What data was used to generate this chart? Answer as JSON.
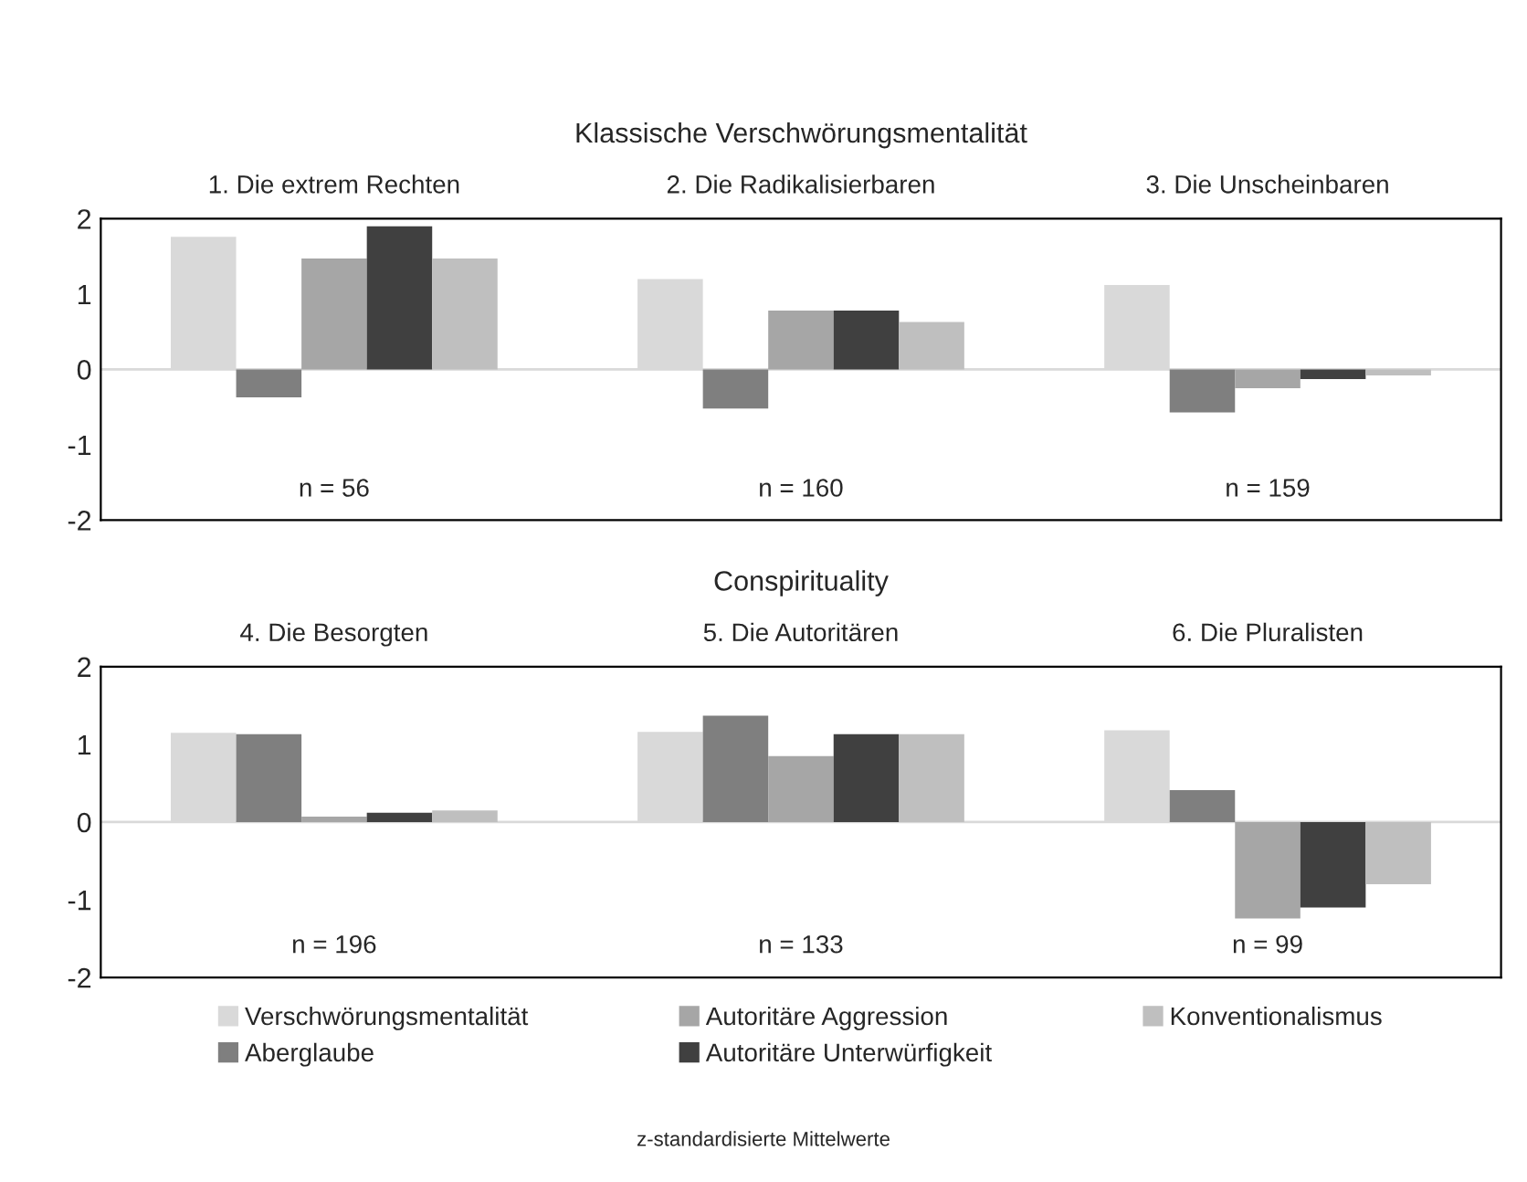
{
  "chart_data": [
    {
      "type": "bar",
      "title": "Klassische Verschwörungsmentalität",
      "categories": [
        "1. Die extrem Rechten",
        "2. Die Radikalisierbaren",
        "3. Die Unscheinbaren"
      ],
      "series": [
        {
          "color": "#d9d9d9",
          "values": [
            1.76,
            1.2,
            1.12
          ]
        },
        {
          "color": "#7f7f7f",
          "values": [
            -0.37,
            -0.52,
            -0.57
          ]
        },
        {
          "color": "#a6a6a6",
          "values": [
            1.47,
            0.78,
            -0.25
          ]
        },
        {
          "color": "#404040",
          "values": [
            1.9,
            0.78,
            -0.13
          ]
        },
        {
          "color": "#bfbfbf",
          "values": [
            1.47,
            0.63,
            -0.08
          ]
        }
      ],
      "ylim": [
        -2,
        2
      ],
      "yticks": [
        2,
        1,
        0,
        -1,
        -2
      ],
      "ref_lines": [
        {
          "axis": "y",
          "value": 0,
          "color": "#d9d9d9"
        }
      ],
      "annotations": [
        "n = 56",
        "n = 160",
        "n = 159"
      ],
      "grid": false
    },
    {
      "type": "bar",
      "title": "Conspirituality",
      "categories": [
        "4. Die Besorgten",
        "5. Die Autoritären",
        "6. Die Pluralisten"
      ],
      "series": [
        {
          "name": "Verschwörungsmentalität",
          "color": "#d9d9d9",
          "values": [
            1.15,
            1.16,
            1.18
          ]
        },
        {
          "name": "Aberglaube",
          "color": "#7f7f7f",
          "values": [
            1.13,
            1.37,
            0.41
          ]
        },
        {
          "name": "Autoritäre Aggression",
          "color": "#a6a6a6",
          "values": [
            0.07,
            0.85,
            -1.24
          ]
        },
        {
          "name": "Autoritäre Unterwürfigkeit",
          "color": "#404040",
          "values": [
            0.12,
            1.13,
            -1.1
          ]
        },
        {
          "name": "Konventionalismus",
          "color": "#bfbfbf",
          "values": [
            0.15,
            1.13,
            -0.8
          ]
        }
      ],
      "ylim": [
        -2,
        2
      ],
      "yticks": [
        2,
        1,
        0,
        -1,
        -2
      ],
      "ref_lines": [
        {
          "axis": "y",
          "value": 0,
          "color": "#d9d9d9"
        }
      ],
      "annotations": [
        "n = 196",
        "n = 133",
        "n = 99",
        "z-standardisierte Mittelwerte"
      ],
      "grid": false,
      "legend": "bottom"
    }
  ]
}
